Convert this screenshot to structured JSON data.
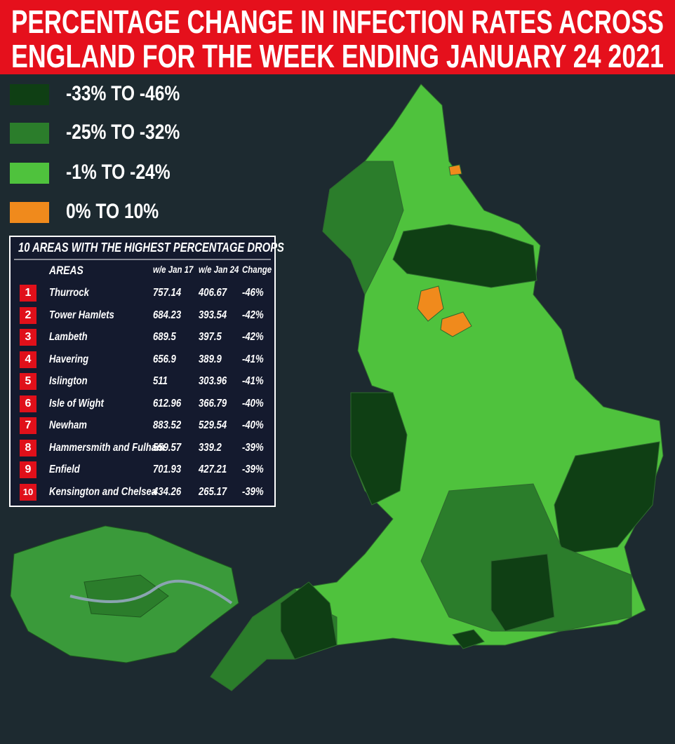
{
  "title": [
    "PERCENTAGE CHANGE IN INFECTION RATES ACROSS",
    "ENGLAND FOR THE WEEK ENDING JANUARY 24 2021"
  ],
  "legend": [
    {
      "label": "-33% TO -46%",
      "color": "#0f3f14"
    },
    {
      "label": "-25% TO -32%",
      "color": "#2b7d2b"
    },
    {
      "label": "-1% TO -24%",
      "color": "#4fc23d"
    },
    {
      "label": "0% TO 10%",
      "color": "#f08a1c"
    }
  ],
  "table": {
    "title": "10 AREAS WITH THE HIGHEST PERCENTAGE DROPS",
    "columns": [
      "AREAS",
      "w/e Jan 17",
      "w/e Jan 24",
      "Change"
    ],
    "rows": [
      [
        1,
        "Thurrock",
        757.14,
        406.67,
        "-46%"
      ],
      [
        2,
        "Tower Hamlets",
        684.23,
        393.54,
        "-42%"
      ],
      [
        3,
        "Lambeth",
        689.5,
        397.5,
        "-42%"
      ],
      [
        4,
        "Havering",
        656.9,
        389.9,
        "-41%"
      ],
      [
        5,
        "Islington",
        511,
        303.96,
        "-41%"
      ],
      [
        6,
        "Isle of Wight",
        612.96,
        366.79,
        "-40%"
      ],
      [
        7,
        "Newham",
        883.52,
        529.54,
        "-40%"
      ],
      [
        8,
        "Hammersmith and Fulham",
        559.57,
        339.2,
        "-39%"
      ],
      [
        9,
        "Enfield",
        701.93,
        427.21,
        "-39%"
      ],
      [
        10,
        "Kensington and Chelsea",
        434.26,
        265.17,
        "-39%"
      ]
    ]
  }
}
